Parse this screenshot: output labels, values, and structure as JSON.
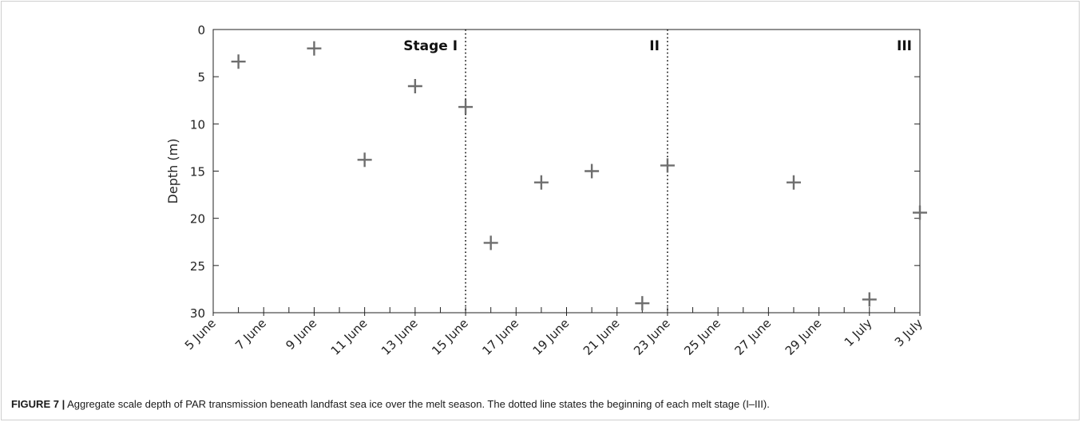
{
  "chart_data": {
    "type": "scatter",
    "xlabel": "",
    "ylabel": "Depth (m)",
    "x_ticks": [
      "5 June",
      "7 June",
      "9 June",
      "11 June",
      "13 June",
      "15 June",
      "17 June",
      "19 June",
      "21 June",
      "23 June",
      "25 June",
      "27 June",
      "29 June",
      "1 July",
      "3 July"
    ],
    "xlim": [
      "5 June",
      "3 July"
    ],
    "ylim": [
      30,
      0
    ],
    "y_ticks": [
      0,
      5,
      10,
      15,
      20,
      25,
      30
    ],
    "y_inverted": true,
    "marker": "plus",
    "marker_color": "#6e6e6e",
    "grid": false,
    "points": [
      {
        "x": "6 June",
        "y": 3.4
      },
      {
        "x": "9 June",
        "y": 2.0
      },
      {
        "x": "11 June",
        "y": 13.8
      },
      {
        "x": "13 June",
        "y": 6.0
      },
      {
        "x": "15 June",
        "y": 8.2
      },
      {
        "x": "16 June",
        "y": 22.6
      },
      {
        "x": "18 June",
        "y": 16.2
      },
      {
        "x": "20 June",
        "y": 15.0
      },
      {
        "x": "22 June",
        "y": 29.0
      },
      {
        "x": "23 June",
        "y": 14.4
      },
      {
        "x": "28 June",
        "y": 16.2
      },
      {
        "x": "1 July",
        "y": 28.6
      },
      {
        "x": "3 July",
        "y": 19.4
      }
    ],
    "stage_lines": [
      {
        "x": "15 June",
        "style": "dotted"
      },
      {
        "x": "23 June",
        "style": "dotted"
      }
    ],
    "stage_labels": [
      {
        "text": "Stage I",
        "stage_start": "5 June"
      },
      {
        "text": "II",
        "stage_start": "15 June"
      },
      {
        "text": "III",
        "stage_start": "23 June"
      }
    ]
  },
  "caption": {
    "label": "FIGURE 7 |",
    "text": " Aggregate scale depth of PAR transmission beneath landfast sea ice over the melt season. The dotted line states the beginning of each melt stage (I–III)."
  }
}
